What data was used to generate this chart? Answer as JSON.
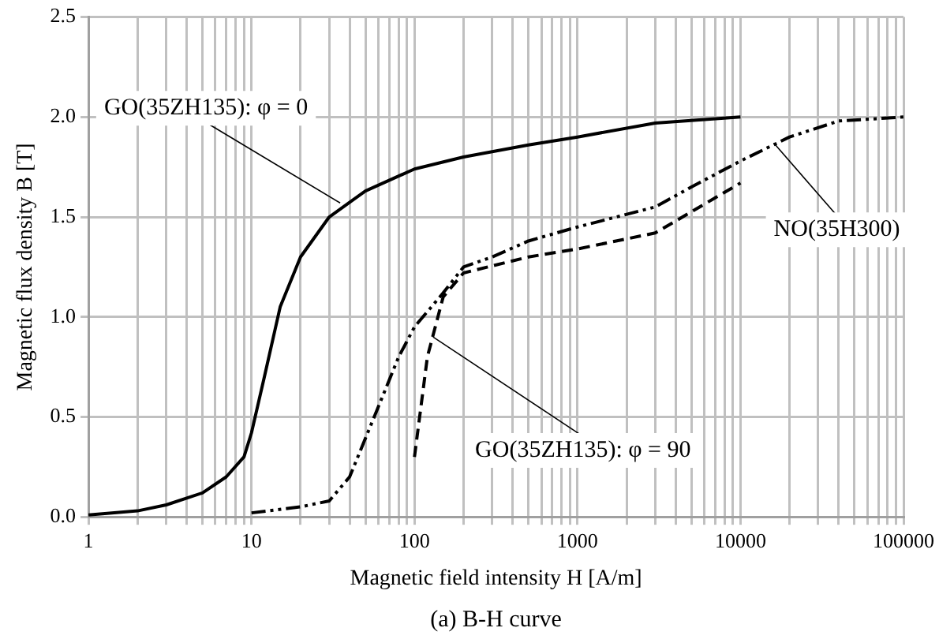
{
  "chart_data": {
    "type": "line",
    "xlabel": "Magnetic field intensity H [A/m]",
    "ylabel": "Magnetic flux density B [T]",
    "log": "x",
    "grid": true,
    "legend": false,
    "marker": "none",
    "xlim": [
      1,
      100000
    ],
    "xticks": [
      1,
      {
        "value": 2,
        "label": null
      },
      {
        "value": 3,
        "label": null
      },
      {
        "value": 4,
        "label": null
      },
      {
        "value": 5,
        "label": null
      },
      {
        "value": 6,
        "label": null
      },
      {
        "value": 7,
        "label": null
      },
      {
        "value": 8,
        "label": null
      },
      {
        "value": 9,
        "label": null
      },
      10,
      {
        "value": 20,
        "label": null
      },
      {
        "value": 30,
        "label": null
      },
      {
        "value": 40,
        "label": null
      },
      {
        "value": 50,
        "label": null
      },
      {
        "value": 60,
        "label": null
      },
      {
        "value": 70,
        "label": null
      },
      {
        "value": 80,
        "label": null
      },
      {
        "value": 90,
        "label": null
      },
      100,
      {
        "value": 200,
        "label": null
      },
      {
        "value": 300,
        "label": null
      },
      {
        "value": 400,
        "label": null
      },
      {
        "value": 500,
        "label": null
      },
      {
        "value": 600,
        "label": null
      },
      {
        "value": 700,
        "label": null
      },
      {
        "value": 800,
        "label": null
      },
      {
        "value": 900,
        "label": null
      },
      1000,
      {
        "value": 2000,
        "label": null
      },
      {
        "value": 3000,
        "label": null
      },
      {
        "value": 4000,
        "label": null
      },
      {
        "value": 5000,
        "label": null
      },
      {
        "value": 6000,
        "label": null
      },
      {
        "value": 7000,
        "label": null
      },
      {
        "value": 8000,
        "label": null
      },
      {
        "value": 9000,
        "label": null
      },
      10000,
      {
        "value": 20000,
        "label": null
      },
      {
        "value": 30000,
        "label": null
      },
      {
        "value": 40000,
        "label": null
      },
      {
        "value": 50000,
        "label": null
      },
      {
        "value": 60000,
        "label": null
      },
      {
        "value": 70000,
        "label": null
      },
      {
        "value": 80000,
        "label": null
      },
      {
        "value": 90000,
        "label": null
      },
      100000
    ],
    "ylim": [
      0,
      2.5
    ],
    "yticks": [
      {
        "value": 0,
        "label": "0.0"
      },
      {
        "value": 0.5,
        "label": "0.5"
      },
      {
        "value": 1,
        "label": "1.0"
      },
      {
        "value": 1.5,
        "label": "1.5"
      },
      {
        "value": 2,
        "label": "2.0"
      },
      {
        "value": 2.5,
        "label": "2.5"
      }
    ],
    "series": [
      {
        "color": "#000000",
        "line_style": "solid",
        "x": [
          1,
          2,
          3,
          5,
          7,
          9,
          10,
          12,
          15,
          20,
          30,
          50,
          100,
          200,
          500,
          1000,
          3000,
          10000
        ],
        "values": [
          0.01,
          0.03,
          0.06,
          0.12,
          0.2,
          0.3,
          0.42,
          0.7,
          1.05,
          1.3,
          1.5,
          1.63,
          1.74,
          1.8,
          1.86,
          1.9,
          1.97,
          2.0
        ]
      },
      {
        "color": "#000000",
        "line_style": "dashdotdot",
        "x": [
          10,
          20,
          30,
          40,
          60,
          80,
          100,
          150,
          200,
          300,
          500,
          1000,
          3000,
          5000,
          10000,
          20000,
          40000,
          100000
        ],
        "values": [
          0.02,
          0.05,
          0.08,
          0.2,
          0.55,
          0.8,
          0.95,
          1.12,
          1.25,
          1.3,
          1.38,
          1.45,
          1.55,
          1.65,
          1.78,
          1.9,
          1.98,
          2.0
        ]
      },
      {
        "color": "#000000",
        "line_style": "dashed",
        "x": [
          100,
          120,
          150,
          200,
          500,
          1000,
          3000,
          10000
        ],
        "values": [
          0.3,
          0.8,
          1.1,
          1.22,
          1.3,
          1.34,
          1.42,
          1.67
        ]
      }
    ],
    "annotations": [
      {
        "text": "GO(35ZH135): φ = 0",
        "x": 35,
        "y": 1.57
      },
      {
        "text": "GO(35ZH135): φ = 90",
        "x": 130,
        "y": 0.9
      },
      {
        "text": "NO(35H300)",
        "x": 16000,
        "y": 1.87
      },
      "(a) B-H curve"
    ]
  }
}
